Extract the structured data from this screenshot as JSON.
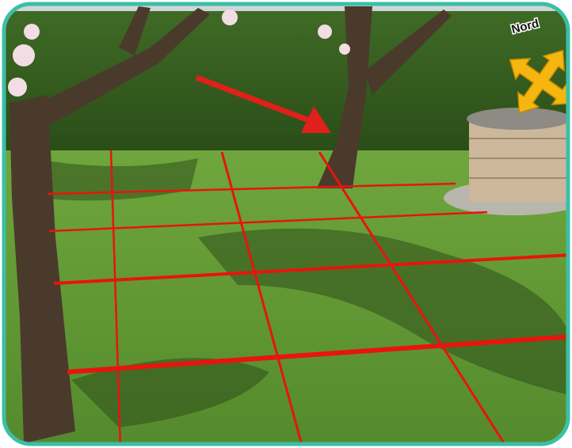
{
  "annotation": {
    "label": "Nord"
  }
}
